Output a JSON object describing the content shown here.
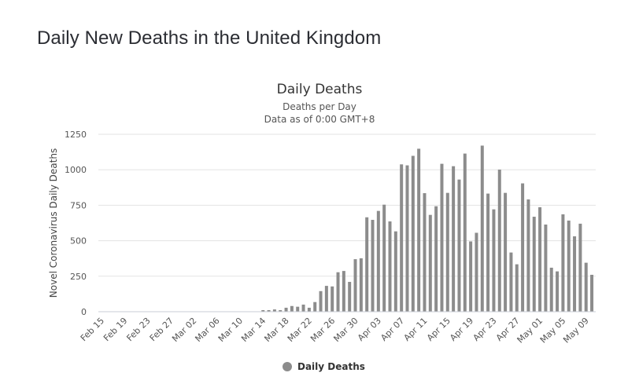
{
  "page": {
    "heading": "Daily New Deaths in the United Kingdom"
  },
  "chart_data": {
    "type": "bar",
    "title": "Daily Deaths",
    "subtitle_lines": [
      "Deaths per Day",
      "Data as of 0:00 GMT+8"
    ],
    "xlabel": "",
    "ylabel": "Novel Coronavirus Daily Deaths",
    "ylim": [
      0,
      1250
    ],
    "yticks": [
      0,
      250,
      500,
      750,
      1000,
      1250
    ],
    "grid": true,
    "legend": {
      "position": "bottom-center",
      "entries": [
        "Daily Deaths"
      ]
    },
    "colors": {
      "bar": "#8c8c8c",
      "grid": "#e3e3e3",
      "axis": "#c8ccd6"
    },
    "x_tick_labels": [
      "Feb 15",
      "Feb 19",
      "Feb 23",
      "Feb 27",
      "Mar 02",
      "Mar 06",
      "Mar 10",
      "Mar 14",
      "Mar 18",
      "Mar 22",
      "Mar 26",
      "Mar 30",
      "Apr 03",
      "Apr 07",
      "Apr 11",
      "Apr 15",
      "Apr 19",
      "Apr 23",
      "Apr 27",
      "May 01",
      "May 05",
      "May 09"
    ],
    "categories": [
      "Feb 15",
      "Feb 16",
      "Feb 17",
      "Feb 18",
      "Feb 19",
      "Feb 20",
      "Feb 21",
      "Feb 22",
      "Feb 23",
      "Feb 24",
      "Feb 25",
      "Feb 26",
      "Feb 27",
      "Feb 28",
      "Feb 29",
      "Mar 01",
      "Mar 02",
      "Mar 03",
      "Mar 04",
      "Mar 05",
      "Mar 06",
      "Mar 07",
      "Mar 08",
      "Mar 09",
      "Mar 10",
      "Mar 11",
      "Mar 12",
      "Mar 13",
      "Mar 14",
      "Mar 15",
      "Mar 16",
      "Mar 17",
      "Mar 18",
      "Mar 19",
      "Mar 20",
      "Mar 21",
      "Mar 22",
      "Mar 23",
      "Mar 24",
      "Mar 25",
      "Mar 26",
      "Mar 27",
      "Mar 28",
      "Mar 29",
      "Mar 30",
      "Mar 31",
      "Apr 01",
      "Apr 02",
      "Apr 03",
      "Apr 04",
      "Apr 05",
      "Apr 06",
      "Apr 07",
      "Apr 08",
      "Apr 09",
      "Apr 10",
      "Apr 11",
      "Apr 12",
      "Apr 13",
      "Apr 14",
      "Apr 15",
      "Apr 16",
      "Apr 17",
      "Apr 18",
      "Apr 19",
      "Apr 20",
      "Apr 21",
      "Apr 22",
      "Apr 23",
      "Apr 24",
      "Apr 25",
      "Apr 26",
      "Apr 27",
      "Apr 28",
      "Apr 29",
      "Apr 30",
      "May 01",
      "May 02",
      "May 03",
      "May 04",
      "May 05",
      "May 06",
      "May 07",
      "May 08",
      "May 09",
      "May 10"
    ],
    "series": [
      {
        "name": "Daily Deaths",
        "values": [
          0,
          0,
          0,
          0,
          0,
          0,
          0,
          0,
          0,
          0,
          0,
          0,
          0,
          0,
          0,
          0,
          0,
          0,
          0,
          0,
          0,
          0,
          0,
          0,
          0,
          0,
          0,
          0,
          11,
          11,
          16,
          11,
          28,
          40,
          35,
          50,
          28,
          68,
          145,
          182,
          178,
          278,
          287,
          210,
          370,
          376,
          665,
          647,
          710,
          754,
          636,
          566,
          1038,
          1031,
          1098,
          1148,
          835,
          682,
          743,
          1042,
          837,
          1025,
          931,
          1114,
          495,
          556,
          1170,
          832,
          721,
          1001,
          837,
          417,
          334,
          904,
          791,
          669,
          736,
          614,
          310,
          284,
          686,
          642,
          531,
          620,
          345,
          260
        ]
      }
    ]
  }
}
